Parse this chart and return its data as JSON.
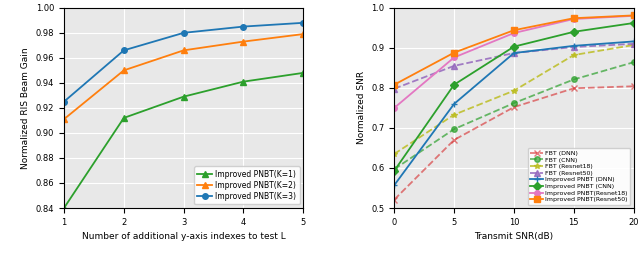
{
  "left": {
    "xlabel": "Number of additional y-axis indexes to test L",
    "ylabel": "Normalized RIS Beam Gain",
    "xlim": [
      1,
      5
    ],
    "ylim": [
      0.84,
      1.0
    ],
    "yticks": [
      0.84,
      0.86,
      0.88,
      0.9,
      0.92,
      0.94,
      0.96,
      0.98,
      1.0
    ],
    "xticks": [
      1,
      2,
      3,
      4,
      5
    ],
    "series": [
      {
        "label": "Improved PNBT(K=1)",
        "x": [
          1,
          2,
          3,
          4,
          5
        ],
        "y": [
          0.84,
          0.912,
          0.929,
          0.941,
          0.948
        ],
        "color": "#2ca02c",
        "marker": "^",
        "linestyle": "-"
      },
      {
        "label": "Improved PNBT(K=2)",
        "x": [
          1,
          2,
          3,
          4,
          5
        ],
        "y": [
          0.911,
          0.95,
          0.966,
          0.973,
          0.979
        ],
        "color": "#ff7f0e",
        "marker": "^",
        "linestyle": "-"
      },
      {
        "label": "Improved PNBT(K=3)",
        "x": [
          1,
          2,
          3,
          4,
          5
        ],
        "y": [
          0.925,
          0.966,
          0.98,
          0.985,
          0.988
        ],
        "color": "#1f77b4",
        "marker": "o",
        "linestyle": "-"
      }
    ]
  },
  "right": {
    "xlabel": "Transmit SNR(dB)",
    "ylabel": "Normalized SNR",
    "xlim": [
      0,
      20
    ],
    "ylim": [
      0.5,
      1.0
    ],
    "yticks": [
      0.5,
      0.6,
      0.7,
      0.8,
      0.9,
      1.0
    ],
    "xticks": [
      0,
      5,
      10,
      15,
      20
    ],
    "series": [
      {
        "label": "FBT (DNN)",
        "x": [
          0,
          5,
          10,
          15,
          20
        ],
        "y": [
          0.521,
          0.67,
          0.752,
          0.799,
          0.804
        ],
        "color": "#d62728",
        "marker": "x",
        "linestyle": "--",
        "alpha": 0.6
      },
      {
        "label": "FBT (CNN)",
        "x": [
          0,
          5,
          10,
          15,
          20
        ],
        "y": [
          0.597,
          0.697,
          0.762,
          0.821,
          0.864
        ],
        "color": "#2ca02c",
        "marker": "o",
        "linestyle": "--",
        "alpha": 0.7
      },
      {
        "label": "FBT (Resnet18)",
        "x": [
          0,
          5,
          10,
          15,
          20
        ],
        "y": [
          0.635,
          0.733,
          0.793,
          0.882,
          0.907
        ],
        "color": "#bcbd22",
        "marker": "*",
        "linestyle": "--",
        "alpha": 0.85
      },
      {
        "label": "FBT (Resnet50)",
        "x": [
          0,
          5,
          10,
          15,
          20
        ],
        "y": [
          0.798,
          0.855,
          0.887,
          0.902,
          0.91
        ],
        "color": "#9467bd",
        "marker": "^",
        "linestyle": "--",
        "alpha": 0.85
      },
      {
        "label": "Improved PNBT (DNN)",
        "x": [
          0,
          5,
          10,
          15,
          20
        ],
        "y": [
          0.557,
          0.76,
          0.887,
          0.905,
          0.916
        ],
        "color": "#1f77b4",
        "marker": "+",
        "linestyle": "-",
        "alpha": 1.0
      },
      {
        "label": "Improved PNBT (CNN)",
        "x": [
          0,
          5,
          10,
          15,
          20
        ],
        "y": [
          0.593,
          0.808,
          0.903,
          0.94,
          0.962
        ],
        "color": "#2ca02c",
        "marker": "D",
        "linestyle": "-",
        "alpha": 1.0
      },
      {
        "label": "Improved PNBT(Resnet18)",
        "x": [
          0,
          5,
          10,
          15,
          20
        ],
        "y": [
          0.75,
          0.876,
          0.937,
          0.972,
          0.98
        ],
        "color": "#e377c2",
        "marker": "o",
        "linestyle": "-",
        "alpha": 1.0
      },
      {
        "label": "Improved PNBT(Resnet50)",
        "x": [
          0,
          5,
          10,
          15,
          20
        ],
        "y": [
          0.808,
          0.888,
          0.944,
          0.974,
          0.981
        ],
        "color": "#ff7f0e",
        "marker": "s",
        "linestyle": "-",
        "alpha": 1.0
      }
    ]
  },
  "fig_width": 6.4,
  "fig_height": 2.6,
  "dpi": 100,
  "bg_color": "#e8e8e8"
}
